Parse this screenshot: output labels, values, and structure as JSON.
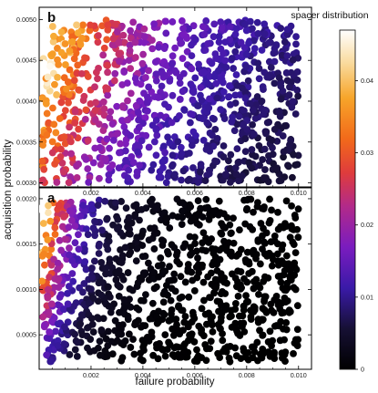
{
  "colorbar": {
    "title": "spacer distribution",
    "range": [
      0,
      0.047
    ],
    "ticks": [
      0,
      0.01,
      0.02,
      0.03,
      0.04
    ],
    "tick_labels": [
      "0",
      "0.01",
      "0.02",
      "0.03",
      "0.04"
    ],
    "colormap": "black-purple-orange-white (heat)"
  },
  "shared": {
    "xlabel": "failure probability",
    "ylabel": "acquisition probability",
    "xlim": [
      0,
      0.0105
    ],
    "x_ticks": [
      0.002,
      0.004,
      0.006,
      0.008,
      0.01
    ],
    "x_tick_labels": [
      "0.002",
      "0.004",
      "0.006",
      "0.008",
      "0.010"
    ]
  },
  "chart_data": [
    {
      "panel": "b",
      "type": "scatter",
      "title": "",
      "xlabel": "",
      "ylabel": "",
      "xlim": [
        0,
        0.0105
      ],
      "ylim": [
        0.00295,
        0.00515
      ],
      "y_ticks": [
        0.003,
        0.0035,
        0.004,
        0.0045,
        0.005
      ],
      "y_tick_labels": [
        "0.0030",
        "0.0035",
        "0.0040",
        "0.0045",
        "0.0050"
      ],
      "point_count": 1000,
      "x_range_sampled": [
        0.0001,
        0.01
      ],
      "y_range_sampled": [
        0.003,
        0.005
      ],
      "color_value_trend": "highest (~0.04) near smallest failure probability and highest acquisition probability; decreases toward ~0.004 at large failure probability and low acquisition",
      "points_sample": [
        {
          "x": 0.0003,
          "y": 0.0048,
          "value": 0.04
        },
        {
          "x": 0.0005,
          "y": 0.0044,
          "value": 0.034
        },
        {
          "x": 0.0008,
          "y": 0.004,
          "value": 0.026
        },
        {
          "x": 0.001,
          "y": 0.0033,
          "value": 0.021
        },
        {
          "x": 0.002,
          "y": 0.0047,
          "value": 0.019
        },
        {
          "x": 0.002,
          "y": 0.0035,
          "value": 0.016
        },
        {
          "x": 0.003,
          "y": 0.0049,
          "value": 0.014
        },
        {
          "x": 0.0035,
          "y": 0.004,
          "value": 0.012
        },
        {
          "x": 0.0045,
          "y": 0.0032,
          "value": 0.009
        },
        {
          "x": 0.0055,
          "y": 0.0046,
          "value": 0.01
        },
        {
          "x": 0.007,
          "y": 0.0038,
          "value": 0.008
        },
        {
          "x": 0.0085,
          "y": 0.0031,
          "value": 0.005
        },
        {
          "x": 0.0095,
          "y": 0.0049,
          "value": 0.007
        }
      ]
    },
    {
      "panel": "a",
      "type": "scatter",
      "title": "",
      "xlabel": "",
      "ylabel": "",
      "xlim": [
        0,
        0.0105
      ],
      "ylim": [
        0.00012,
        0.00212
      ],
      "y_ticks": [
        0.0005,
        0.001,
        0.0015,
        0.002
      ],
      "y_tick_labels": [
        "0.0005",
        "0.0010",
        "0.0015",
        "0.0020"
      ],
      "point_count": 1000,
      "x_range_sampled": [
        0.0001,
        0.01
      ],
      "y_range_sampled": [
        0.0002,
        0.002
      ],
      "color_value_trend": "highest (~0.04) only near very small failure probability and high acquisition probability; most of the region near 0",
      "points_sample": [
        {
          "x": 0.0003,
          "y": 0.0019,
          "value": 0.04
        },
        {
          "x": 0.0004,
          "y": 0.0015,
          "value": 0.025
        },
        {
          "x": 0.0006,
          "y": 0.001,
          "value": 0.015
        },
        {
          "x": 0.0008,
          "y": 0.0018,
          "value": 0.022
        },
        {
          "x": 0.0015,
          "y": 0.0017,
          "value": 0.013
        },
        {
          "x": 0.002,
          "y": 0.0012,
          "value": 0.007
        },
        {
          "x": 0.003,
          "y": 0.0018,
          "value": 0.006
        },
        {
          "x": 0.004,
          "y": 0.0006,
          "value": 0.002
        },
        {
          "x": 0.006,
          "y": 0.0015,
          "value": 0.002
        },
        {
          "x": 0.008,
          "y": 0.0004,
          "value": 0.001
        },
        {
          "x": 0.0095,
          "y": 0.0019,
          "value": 0.002
        }
      ]
    }
  ]
}
